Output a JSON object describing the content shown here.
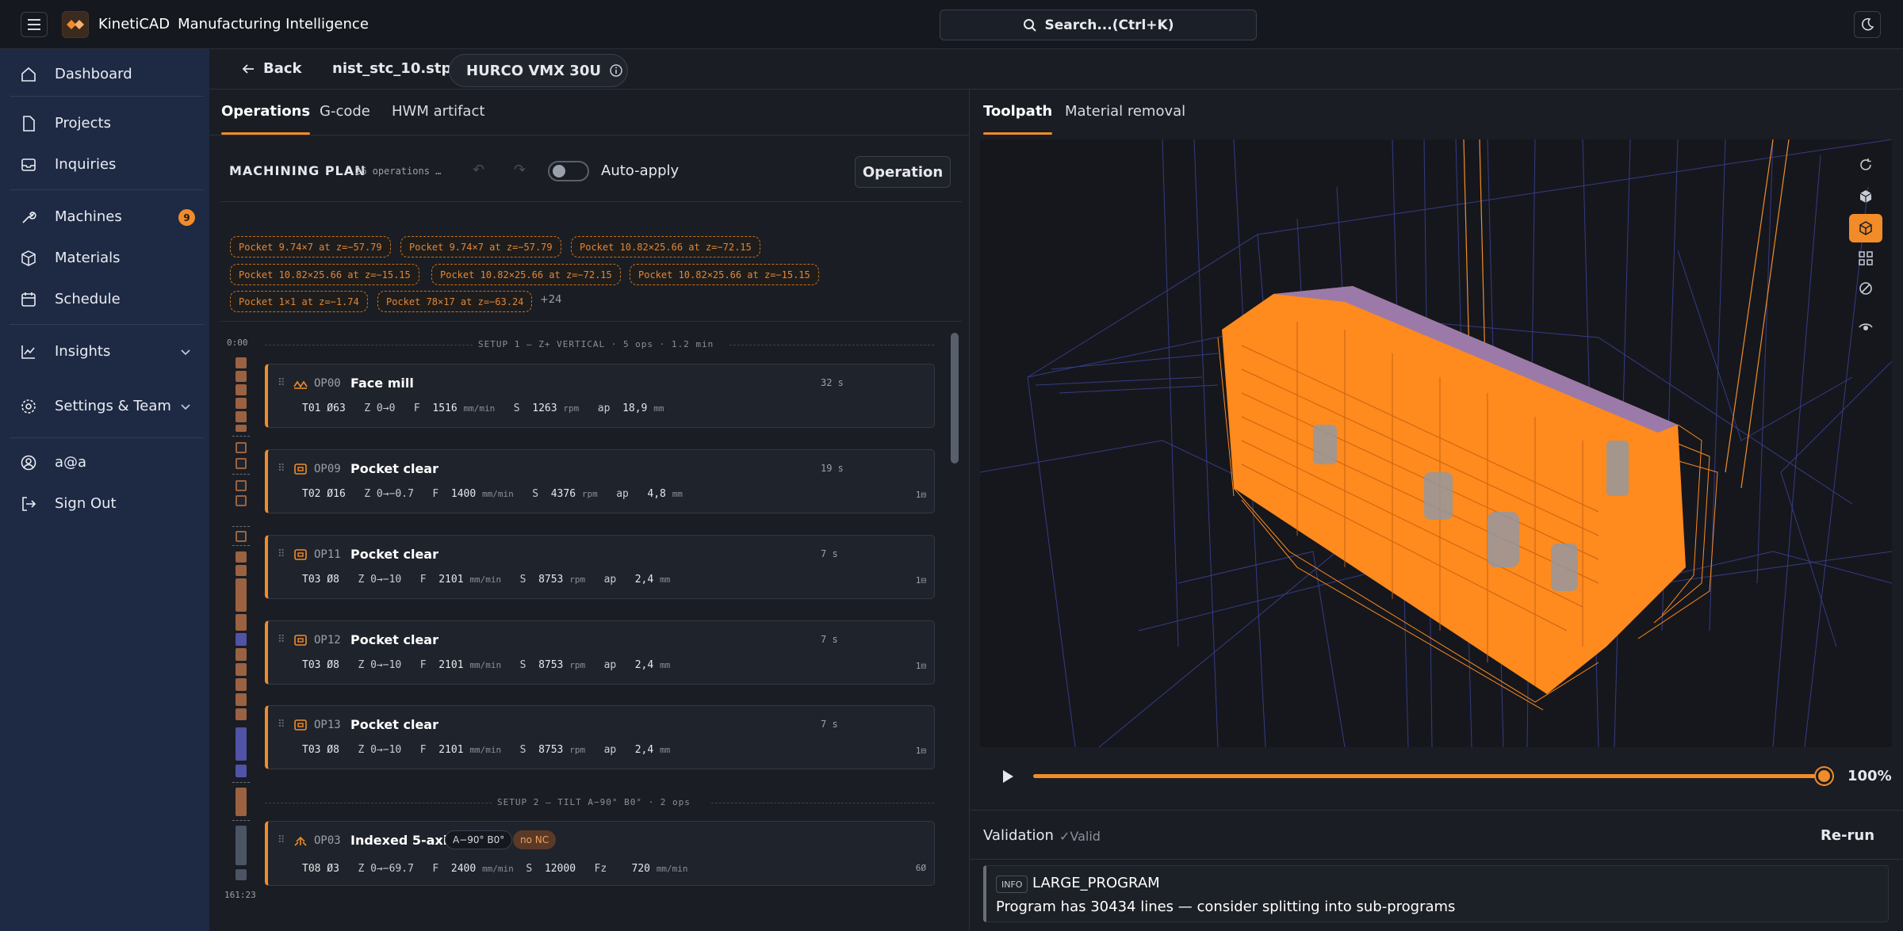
{
  "app": {
    "brand_a": "KinetiCAD",
    "brand_b": "Manufacturing Intelligence",
    "search_placeholder": "Search...(Ctrl+K)"
  },
  "sidebar": {
    "items": [
      {
        "label": "Dashboard",
        "icon": "home-icon"
      },
      {
        "label": "Projects",
        "icon": "document-icon"
      },
      {
        "label": "Inquiries",
        "icon": "inbox-icon"
      },
      {
        "label": "Machines",
        "icon": "wrench-icon",
        "badge": "9"
      },
      {
        "label": "Materials",
        "icon": "cube-icon"
      },
      {
        "label": "Schedule",
        "icon": "calendar-icon"
      },
      {
        "label": "Insights",
        "icon": "chart-icon"
      },
      {
        "label": "Settings & Team",
        "icon": "gear-icon"
      },
      {
        "label": "a@a",
        "icon": "user-icon"
      },
      {
        "label": "Sign Out",
        "icon": "logout-icon"
      }
    ]
  },
  "header": {
    "back": "Back",
    "file": "nist_stc_10.stp",
    "machine": "HURCO VMX 30U"
  },
  "left_tabs": [
    "Operations",
    "G-code",
    "HWM artifact"
  ],
  "right_tabs": [
    "Toolpath",
    "Material removal"
  ],
  "plan": {
    "title": "MACHINING PLAN",
    "count": "26 operations …",
    "auto_apply": "Auto-apply",
    "operation_button": "Operation",
    "chips": [
      "Pocket 9.74×7 at z=−57.79",
      "Pocket 9.74×7 at z=−57.79",
      "Pocket 10.82×25.66 at z=−72.15",
      "Pocket 10.82×25.66 at z=−15.15",
      "Pocket 10.82×25.66 at z=−72.15",
      "Pocket 10.82×25.66 at z=−15.15",
      "Pocket 1×1 at z=−1.74",
      "Pocket 78×17 at z=−63.24"
    ],
    "more": "+24",
    "time_start": "0:00",
    "time_end": "161:23",
    "setup1": "SETUP 1 — Z+ VERTICAL · 5 ops · 1.2 min",
    "setup2": "SETUP 2 — TILT A−90° B0° · 2 ops"
  },
  "ops": [
    {
      "code": "OP00",
      "name": "Face mill",
      "dur": "32 s",
      "tool": "T01 Ø63",
      "z": "Z 0→0",
      "f": "1516",
      "fu": "mm/min",
      "s": "1263",
      "su": "rpm",
      "ap": "18,9",
      "apu": "mm",
      "extra": ""
    },
    {
      "code": "OP09",
      "name": "Pocket clear",
      "dur": "19 s",
      "tool": "T02 Ø16",
      "z": "Z 0→−0.7",
      "f": "1400",
      "fu": "mm/min",
      "s": "4376",
      "su": "rpm",
      "ap": "4,8",
      "apu": "mm",
      "extra": "1⊟"
    },
    {
      "code": "OP11",
      "name": "Pocket clear",
      "dur": "7 s",
      "tool": "T03 Ø8",
      "z": "Z 0→−10",
      "f": "2101",
      "fu": "mm/min",
      "s": "8753",
      "su": "rpm",
      "ap": "2,4",
      "apu": "mm",
      "extra": "1⊟"
    },
    {
      "code": "OP12",
      "name": "Pocket clear",
      "dur": "7 s",
      "tool": "T03 Ø8",
      "z": "Z 0→−10",
      "f": "2101",
      "fu": "mm/min",
      "s": "8753",
      "su": "rpm",
      "ap": "2,4",
      "apu": "mm",
      "extra": "1⊟"
    },
    {
      "code": "OP13",
      "name": "Pocket clear",
      "dur": "7 s",
      "tool": "T03 Ø8",
      "z": "Z 0→−10",
      "f": "2101",
      "fu": "mm/min",
      "s": "8753",
      "su": "rpm",
      "ap": "2,4",
      "apu": "mm",
      "extra": "1⊟"
    },
    {
      "code": "OP03",
      "name": "Indexed 5-axis",
      "dur": "",
      "tool": "T08 Ø3",
      "z": "Z 0→−69.7",
      "f": "2400",
      "fu": "mm/min",
      "s": "12000",
      "su": "",
      "ap": "",
      "apu": "",
      "fz": "720",
      "fzu": "mm/min",
      "extra": "6Ø",
      "tag1": "A−90° B0°",
      "tag2": "no NC"
    }
  ],
  "player": {
    "zoom": "100%",
    "progress": 1.0
  },
  "validation": {
    "title": "Validation",
    "status": "✓Valid",
    "rerun": "Re-run",
    "level": "INFO",
    "code": "LARGE_PROGRAM",
    "message": "Program has 30434 lines — consider splitting into sub-programs"
  },
  "colors": {
    "accent": "#f28c28",
    "sidebar": "#1e2a44",
    "bg": "#1a1d24",
    "toolpath_blue": "#5b5fd6"
  }
}
